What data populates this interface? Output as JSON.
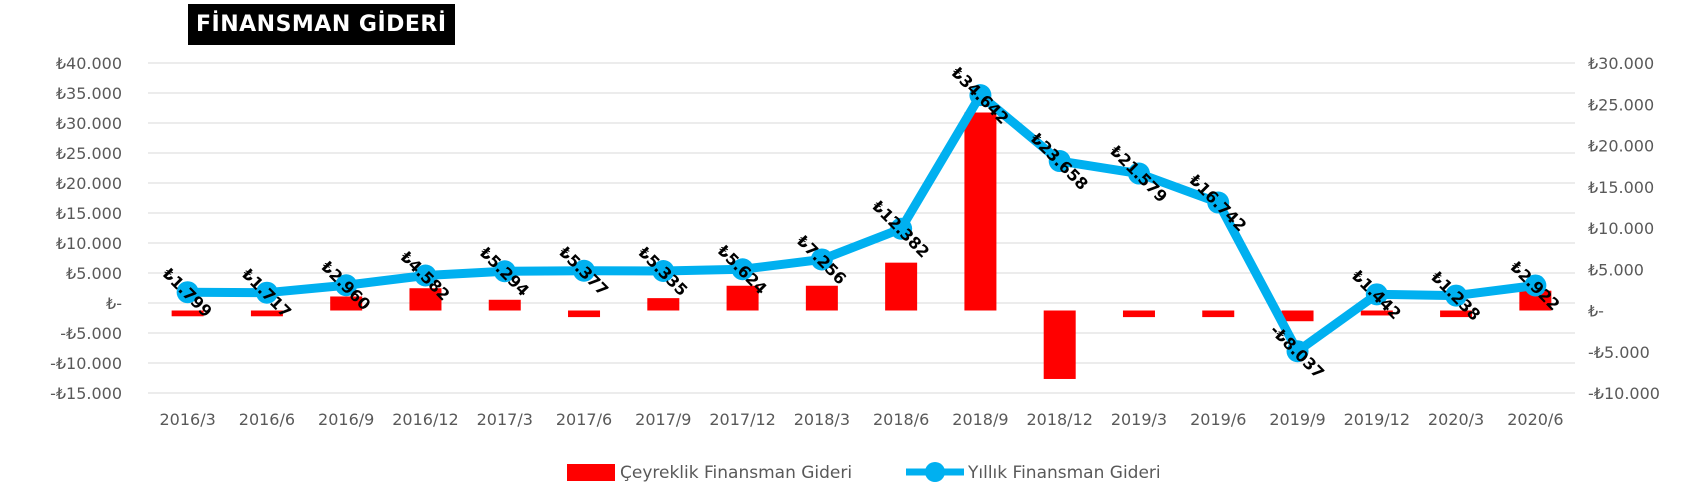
{
  "title": "FİNANSMAN GİDERİ",
  "colors": {
    "bar": "#ff0000",
    "line": "#00b0f0",
    "grid": "#d9d9d9",
    "axis_text": "#595959"
  },
  "chart_data": {
    "type": "bar+line",
    "categories": [
      "2016/3",
      "2016/6",
      "2016/9",
      "2016/12",
      "2017/3",
      "2017/6",
      "2017/9",
      "2017/12",
      "2018/3",
      "2018/6",
      "2018/9",
      "2018/12",
      "2019/3",
      "2019/6",
      "2019/9",
      "2019/12",
      "2020/3",
      "2020/6"
    ],
    "series": [
      {
        "name": "Çeyreklik Finansman Gideri",
        "type": "bar",
        "axis": "right",
        "values": [
          -700,
          -700,
          1700,
          2700,
          1300,
          -800,
          1500,
          3000,
          3000,
          5800,
          24000,
          -8300,
          -800,
          -800,
          -1300,
          -600,
          -800,
          2400
        ]
      },
      {
        "name": "Yıllık Finansman Gideri",
        "type": "line",
        "axis": "left",
        "values": [
          1799,
          1717,
          2960,
          4582,
          5294,
          5377,
          5335,
          5624,
          7256,
          12382,
          34642,
          23658,
          21579,
          16742,
          -8037,
          1442,
          1238,
          2922
        ],
        "labels": [
          "₺1.799",
          "₺1.717",
          "₺2.960",
          "₺4.582",
          "₺5.294",
          "₺5.377",
          "₺5.335",
          "₺5.624",
          "₺7.256",
          "₺12.382",
          "₺34.642",
          "₺23.658",
          "₺21.579",
          "₺16.742",
          "-₺8.037",
          "₺1.442",
          "₺1.238",
          "₺2.922"
        ]
      }
    ],
    "left_axis": {
      "min": -15000,
      "max": 40000,
      "ticks": [
        40000,
        35000,
        30000,
        25000,
        20000,
        15000,
        10000,
        5000,
        0,
        -5000,
        -10000,
        -15000
      ],
      "tick_labels": [
        "₺40.000",
        "₺35.000",
        "₺30.000",
        "₺25.000",
        "₺20.000",
        "₺15.000",
        "₺10.000",
        "₺5.000",
        "₺-",
        "-₺5.000",
        "-₺10.000",
        "-₺15.000"
      ]
    },
    "right_axis": {
      "min": -10000,
      "max": 30000,
      "ticks": [
        30000,
        25000,
        20000,
        15000,
        10000,
        5000,
        0,
        -5000,
        -10000
      ],
      "tick_labels": [
        "₺30.000",
        "₺25.000",
        "₺20.000",
        "₺15.000",
        "₺10.000",
        "₺5.000",
        "₺-",
        "-₺5.000",
        "-₺10.000"
      ]
    },
    "grid": true,
    "legend": {
      "position": "bottom",
      "items": [
        "Çeyreklik Finansman Gideri",
        "Yıllık Finansman Gideri"
      ]
    }
  }
}
